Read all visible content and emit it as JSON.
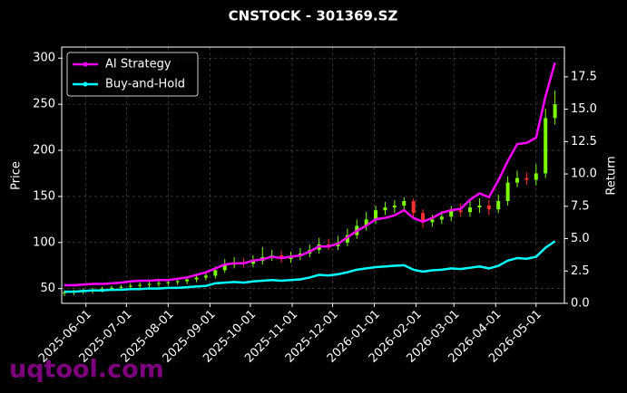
{
  "chart_data": {
    "type": "candlestick",
    "title": "CNSTOCK - 301369.SZ",
    "ylabel": "Price",
    "y2label": "Return",
    "watermark": "uqtool.com",
    "x": [
      "2025-05-16",
      "2025-05-23",
      "2025-05-30",
      "2025-06-06",
      "2025-06-13",
      "2025-06-20",
      "2025-06-27",
      "2025-07-04",
      "2025-07-11",
      "2025-07-18",
      "2025-07-25",
      "2025-08-01",
      "2025-08-08",
      "2025-08-15",
      "2025-08-22",
      "2025-08-29",
      "2025-09-05",
      "2025-09-12",
      "2025-09-19",
      "2025-09-26",
      "2025-10-03",
      "2025-10-10",
      "2025-10-17",
      "2025-10-24",
      "2025-10-31",
      "2025-11-07",
      "2025-11-14",
      "2025-11-21",
      "2025-11-28",
      "2025-12-05",
      "2025-12-12",
      "2025-12-19",
      "2025-12-26",
      "2026-01-02",
      "2026-01-09",
      "2026-01-16",
      "2026-01-23",
      "2026-01-30",
      "2026-02-06",
      "2026-02-13",
      "2026-02-20",
      "2026-02-27",
      "2026-03-06",
      "2026-03-13",
      "2026-03-20",
      "2026-03-27",
      "2026-04-03",
      "2026-04-10",
      "2026-04-17",
      "2026-04-24",
      "2026-05-01",
      "2026-05-08",
      "2026-05-15"
    ],
    "open": [
      45,
      46,
      47,
      48,
      49,
      50,
      51,
      52,
      53,
      54,
      55,
      56,
      57,
      58,
      60,
      62,
      64,
      70,
      76,
      78,
      77,
      80,
      84,
      86,
      82,
      85,
      88,
      92,
      98,
      96,
      100,
      108,
      118,
      125,
      135,
      138,
      140,
      145,
      132,
      122,
      125,
      128,
      135,
      133,
      138,
      140,
      136,
      145,
      165,
      170,
      168,
      175,
      235
    ],
    "high": [
      48,
      49,
      50,
      51,
      52,
      53,
      54,
      56,
      57,
      58,
      59,
      60,
      61,
      63,
      65,
      67,
      74,
      82,
      84,
      83,
      86,
      95,
      92,
      91,
      90,
      94,
      98,
      105,
      104,
      107,
      115,
      125,
      133,
      140,
      144,
      146,
      149,
      148,
      136,
      130,
      134,
      140,
      142,
      145,
      148,
      146,
      152,
      172,
      178,
      176,
      185,
      245,
      265
    ],
    "low": [
      42,
      43,
      44,
      45,
      46,
      47,
      48,
      49,
      50,
      51,
      52,
      53,
      54,
      55,
      57,
      59,
      61,
      67,
      72,
      73,
      73,
      76,
      80,
      78,
      78,
      81,
      84,
      88,
      92,
      92,
      96,
      104,
      113,
      120,
      130,
      132,
      135,
      128,
      116,
      117,
      120,
      123,
      128,
      128,
      132,
      130,
      132,
      140,
      160,
      163,
      162,
      170,
      228
    ],
    "close": [
      46,
      47,
      48,
      49,
      50,
      51,
      52,
      53,
      54,
      55,
      56,
      57,
      58,
      60,
      62,
      64,
      70,
      76,
      78,
      77,
      80,
      84,
      86,
      82,
      85,
      88,
      92,
      98,
      96,
      100,
      108,
      118,
      125,
      135,
      138,
      140,
      145,
      132,
      122,
      125,
      128,
      135,
      133,
      138,
      140,
      136,
      145,
      165,
      170,
      168,
      175,
      235,
      250
    ],
    "up_color": "#7cfc00",
    "down_color": "#ff3030",
    "series": [
      {
        "name": "AI Strategy",
        "color": "#ff00ff",
        "axis": "y2",
        "values": [
          1.4,
          1.4,
          1.45,
          1.5,
          1.5,
          1.55,
          1.6,
          1.7,
          1.75,
          1.75,
          1.8,
          1.8,
          1.9,
          2.0,
          2.2,
          2.4,
          2.7,
          3.0,
          3.1,
          3.1,
          3.3,
          3.4,
          3.6,
          3.5,
          3.6,
          3.7,
          4.0,
          4.4,
          4.4,
          4.6,
          5.1,
          5.6,
          6.0,
          6.5,
          6.6,
          6.8,
          7.2,
          6.6,
          6.3,
          6.6,
          7.0,
          7.2,
          7.3,
          8.0,
          8.5,
          8.2,
          9.5,
          11.0,
          12.3,
          12.4,
          12.8,
          16.0,
          18.6
        ]
      },
      {
        "name": "Buy-and-Hold",
        "color": "#00ffff",
        "axis": "y2",
        "values": [
          0.9,
          0.9,
          0.95,
          1.0,
          1.0,
          1.05,
          1.05,
          1.1,
          1.1,
          1.15,
          1.15,
          1.2,
          1.2,
          1.25,
          1.3,
          1.35,
          1.55,
          1.6,
          1.65,
          1.6,
          1.7,
          1.75,
          1.8,
          1.75,
          1.8,
          1.85,
          2.0,
          2.2,
          2.15,
          2.25,
          2.4,
          2.6,
          2.7,
          2.8,
          2.85,
          2.9,
          2.95,
          2.6,
          2.45,
          2.55,
          2.6,
          2.7,
          2.65,
          2.75,
          2.85,
          2.7,
          2.9,
          3.3,
          3.5,
          3.45,
          3.6,
          4.3,
          4.8
        ]
      }
    ],
    "xlim": [
      "2025-05-14",
      "2026-05-22"
    ],
    "xticks": [
      "2025-06-01",
      "2025-07-01",
      "2025-08-01",
      "2025-09-01",
      "2025-10-01",
      "2025-11-01",
      "2025-12-01",
      "2026-01-01",
      "2026-02-01",
      "2026-03-01",
      "2026-04-01",
      "2026-05-01"
    ],
    "ylim": [
      34,
      312
    ],
    "yticks": [
      50,
      100,
      150,
      200,
      250,
      300
    ],
    "y2lim": [
      0,
      19.8
    ],
    "y2ticks": [
      {
        "value": 0,
        "label": "0.0"
      },
      2.5,
      {
        "value": 5,
        "label": "5.0"
      },
      7.5,
      {
        "value": 10,
        "label": "10.0"
      },
      12.5,
      {
        "value": 15,
        "label": "15.0"
      },
      17.5
    ],
    "grid": true,
    "legend": "upper left"
  }
}
